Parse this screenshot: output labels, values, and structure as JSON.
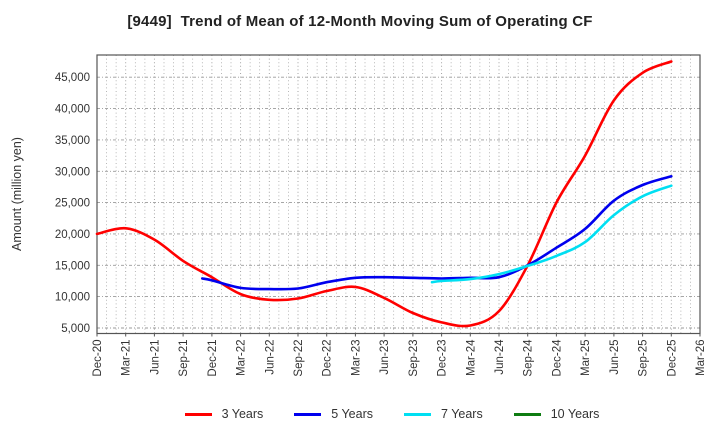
{
  "chart_data": {
    "type": "line",
    "title": "[9449]  Trend of Mean of 12-Month Moving Sum of Operating CF",
    "xlabel": "",
    "ylabel": "Amount (million yen)",
    "grid": true,
    "legend_position": "bottom",
    "x_unit": "months since Dec-20",
    "x_range_months": [
      0,
      63
    ],
    "ylim": [
      4100,
      48500
    ],
    "x_tick_labels": [
      "Dec-20",
      "Mar-21",
      "Jun-21",
      "Sep-21",
      "Dec-21",
      "Mar-22",
      "Jun-22",
      "Sep-22",
      "Dec-22",
      "Mar-23",
      "Jun-23",
      "Sep-23",
      "Dec-23",
      "Mar-24",
      "Jun-24",
      "Sep-24",
      "Dec-24",
      "Mar-25",
      "Jun-25",
      "Sep-25",
      "Dec-25",
      "Mar-26"
    ],
    "y_ticks": [
      {
        "v": 5000,
        "label": "5,000"
      },
      {
        "v": 10000,
        "label": "10,000"
      },
      {
        "v": 15000,
        "label": "15,000"
      },
      {
        "v": 20000,
        "label": "20,000"
      },
      {
        "v": 25000,
        "label": "25,000"
      },
      {
        "v": 30000,
        "label": "30,000"
      },
      {
        "v": 35000,
        "label": "35,000"
      },
      {
        "v": 40000,
        "label": "40,000"
      },
      {
        "v": 45000,
        "label": "45,000"
      }
    ],
    "series": [
      {
        "name": "3 Years",
        "color": "#ff0000",
        "x": [
          0,
          3,
          6,
          9,
          12,
          15,
          18,
          21,
          24,
          27,
          30,
          33,
          36,
          39,
          42,
          45,
          48,
          51,
          54,
          57,
          60
        ],
        "values": [
          20000,
          20900,
          19100,
          15700,
          13100,
          10400,
          9500,
          9700,
          10900,
          11550,
          9800,
          7400,
          5900,
          5400,
          7700,
          15000,
          25000,
          32500,
          41300,
          45700,
          47500
        ]
      },
      {
        "name": "5 Years",
        "color": "#0000ee",
        "x": [
          11,
          12,
          15,
          18,
          21,
          24,
          27,
          30,
          33,
          36,
          39,
          42,
          45,
          48,
          51,
          54,
          57,
          60
        ],
        "values": [
          12900,
          12600,
          11400,
          11200,
          11300,
          12300,
          13000,
          13100,
          13000,
          12900,
          13000,
          13100,
          15000,
          17800,
          20800,
          25300,
          27800,
          29200
        ]
      },
      {
        "name": "7 Years",
        "color": "#00dff2",
        "x": [
          35,
          36,
          39,
          42,
          45,
          48,
          51,
          54,
          57,
          60
        ],
        "values": [
          12300,
          12500,
          12800,
          13600,
          14900,
          16500,
          18700,
          23000,
          26000,
          27700
        ]
      },
      {
        "name": "10 Years",
        "color": "#0e7c12",
        "x": [],
        "values": []
      }
    ]
  }
}
